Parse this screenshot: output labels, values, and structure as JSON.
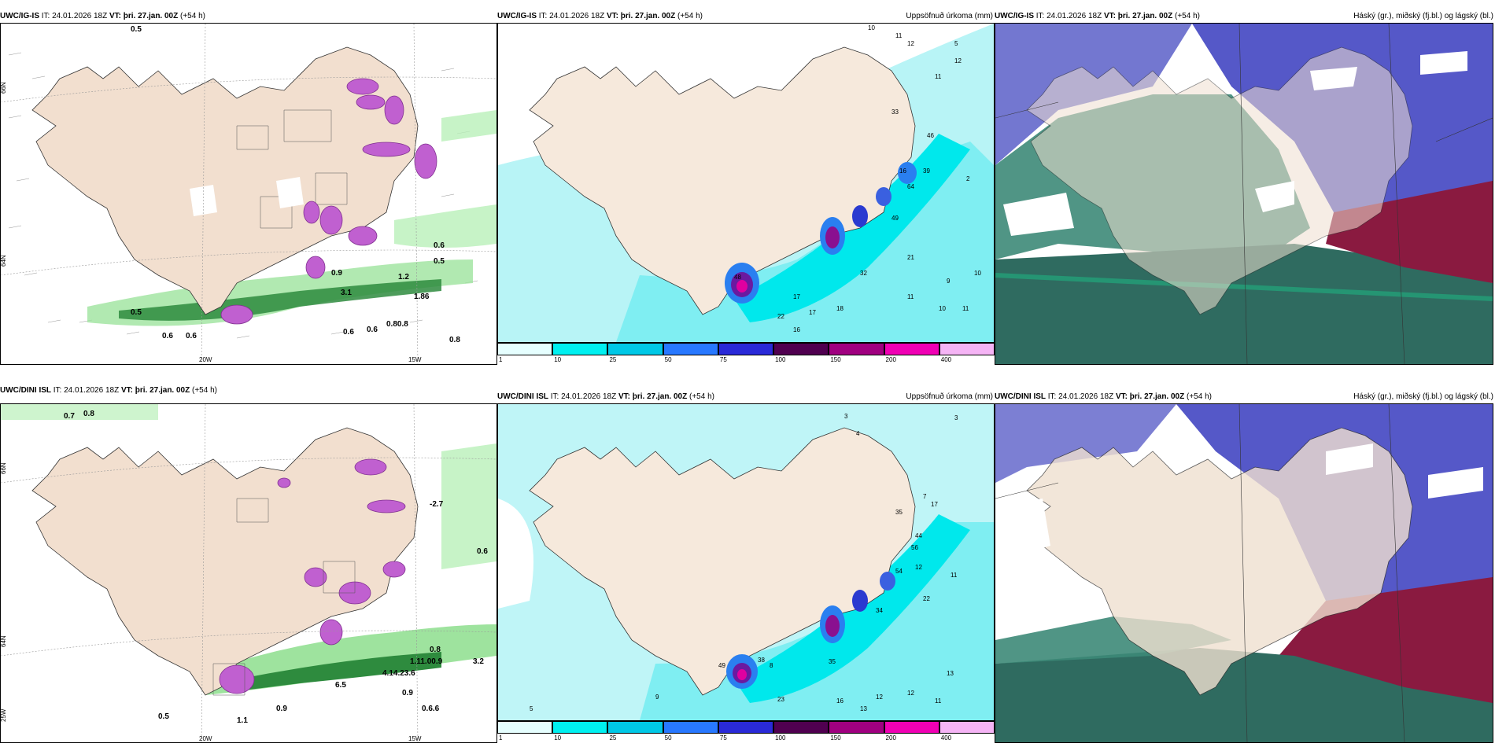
{
  "panels": {
    "p1": {
      "model": "UWC/IG-IS",
      "it_label": "IT:",
      "it": "24.01.2026 18Z",
      "vt_label": "VT:",
      "vt": "þri. 27.jan. 00Z",
      "lead": "(+54 h)",
      "right": ""
    },
    "p2": {
      "model": "UWC/IG-IS",
      "it_label": "IT:",
      "it": "24.01.2026 18Z",
      "vt_label": "VT:",
      "vt": "þri. 27.jan. 00Z",
      "lead": "(+54 h)",
      "right": "Uppsöfnuð úrkoma (mm)"
    },
    "p3": {
      "model": "UWC/IG-IS",
      "it_label": "IT:",
      "it": "24.01.2026 18Z",
      "vt_label": "VT:",
      "vt": "þri. 27.jan. 00Z",
      "lead": "(+54 h)",
      "right": "Háský (gr.), miðský (fj.bl.) og lágský (bl.)"
    },
    "p4": {
      "model": "UWC/DINI ISL",
      "it_label": "IT:",
      "it": "24.01.2026 18Z",
      "vt_label": "VT:",
      "vt": "þri. 27.jan. 00Z",
      "lead": "(+54 h)",
      "right": ""
    },
    "p5": {
      "model": "UWC/DINI ISL",
      "it_label": "IT:",
      "it": "24.01.2026 18Z",
      "vt_label": "VT:",
      "vt": "þri. 27.jan. 00Z",
      "lead": "(+54 h)",
      "right": "Uppsöfnuð úrkoma (mm)"
    },
    "p6": {
      "model": "UWC/DINI ISL",
      "it_label": "IT:",
      "it": "24.01.2026 18Z",
      "vt_label": "VT:",
      "vt": "þri. 27.jan. 00Z",
      "lead": "(+54 h)",
      "right": "Háský (gr.), miðský (fj.bl.) og lágský (bl.)"
    }
  },
  "axis": {
    "lon_20w": "20W",
    "lon_15w": "15W",
    "lat_66n": "66N",
    "lat_64n": "64N",
    "lat_25w": "25W"
  },
  "colorbar": {
    "ticks": [
      "1",
      "10",
      "25",
      "50",
      "75",
      "100",
      "150",
      "200",
      "400"
    ],
    "colors": [
      "#e6ffff",
      "#00f0f0",
      "#00c8e6",
      "#2878ff",
      "#2a2ad8",
      "#500050",
      "#a00080",
      "#f000b4",
      "#f5b4f5"
    ]
  },
  "p1_labels": {
    "a": "0.5",
    "b": "0.6",
    "c": "0.5",
    "d": "1.2",
    "e": "1.86",
    "f": "0.5",
    "g": "0.6",
    "h": "0.6",
    "i": "0.80.8",
    "j": "0.8",
    "k": "0.6",
    "l": "0.6",
    "m": "3.1",
    "n": "0.9"
  },
  "p4_labels": {
    "a": "0.7",
    "b": "0.8",
    "c": "-2.7",
    "d": "0.6",
    "e": "0.5",
    "f": "0.9",
    "g": "0.8",
    "h": "4.14.23.6",
    "i": "1.11.00.9",
    "j": "3.2",
    "k": "0.9",
    "l": "0.6.6",
    "m": "1.1",
    "n": "6.5"
  },
  "p2_labels": {
    "a": "10",
    "b": "11",
    "c": "12",
    "d": "5",
    "e": "12",
    "f": "11",
    "g": "2",
    "h": "33",
    "i": "46",
    "j": "39",
    "k": "16",
    "l": "64",
    "m": "49",
    "n": "48",
    "o": "32",
    "p": "17",
    "q": "17",
    "r": "18",
    "s": "16",
    "t": "22",
    "u": "11",
    "v": "10",
    "w": "21",
    "x": "9",
    "y": "10",
    "z": "11"
  },
  "p5_labels": {
    "a": "3",
    "b": "3",
    "c": "4",
    "d": "7",
    "e": "12",
    "f": "17",
    "g": "35",
    "h": "44",
    "i": "56",
    "j": "54",
    "k": "34",
    "l": "35",
    "m": "22",
    "n": "23",
    "o": "16",
    "p": "12",
    "q": "13",
    "r": "12",
    "s": "49",
    "t": "38",
    "u": "8",
    "v": "9",
    "w": "13",
    "x": "11",
    "y": "11",
    "z": "5"
  }
}
